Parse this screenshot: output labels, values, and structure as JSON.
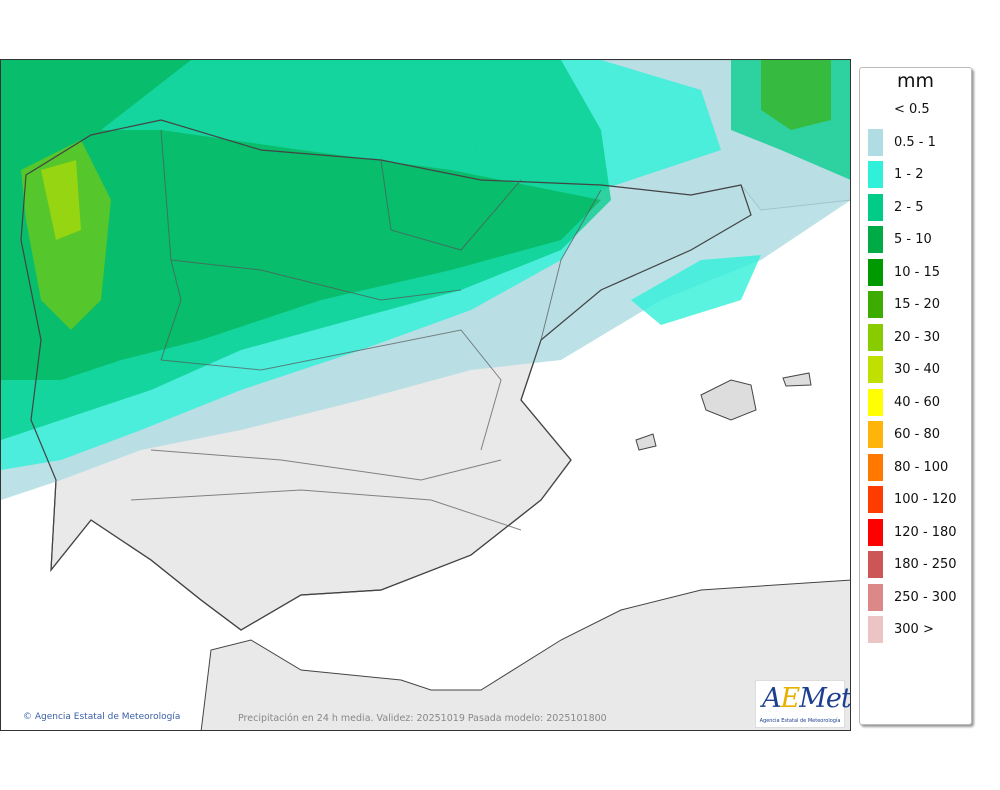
{
  "map": {
    "caption": "Precipitación en 24 h media. Validez: 20251019 Pasada modelo: 2025101800",
    "credit": "Agencia Estatal de Meteorología",
    "logo_text": "AEMet",
    "logo_subtitle": "Agencia Estatal de Meteorología",
    "land_color": "#e9e9e9",
    "sea_color": "#ffffff"
  },
  "legend": {
    "unit": "mm",
    "items": [
      {
        "label": "< 0.5",
        "color": null
      },
      {
        "label": "0.5 - 1",
        "color": "#b0dde4"
      },
      {
        "label": "1 - 2",
        "color": "#2ff0d8"
      },
      {
        "label": "2 - 5",
        "color": "#00cc88"
      },
      {
        "label": "5 - 10",
        "color": "#00aa44"
      },
      {
        "label": "10 - 15",
        "color": "#009900"
      },
      {
        "label": "15 - 20",
        "color": "#3cac00"
      },
      {
        "label": "20 - 30",
        "color": "#88cc00"
      },
      {
        "label": "30 - 40",
        "color": "#c0e000"
      },
      {
        "label": "40 - 60",
        "color": "#ffff00"
      },
      {
        "label": "60 - 80",
        "color": "#ffb40a"
      },
      {
        "label": "80 - 100",
        "color": "#ff7800"
      },
      {
        "label": "100 - 120",
        "color": "#ff3c00"
      },
      {
        "label": "120 - 180",
        "color": "#ff0000"
      },
      {
        "label": "180 - 250",
        "color": "#cc5555"
      },
      {
        "label": "250 - 300",
        "color": "#dd8888"
      },
      {
        "label": "300 >",
        "color": "#ecc4c4"
      }
    ]
  }
}
